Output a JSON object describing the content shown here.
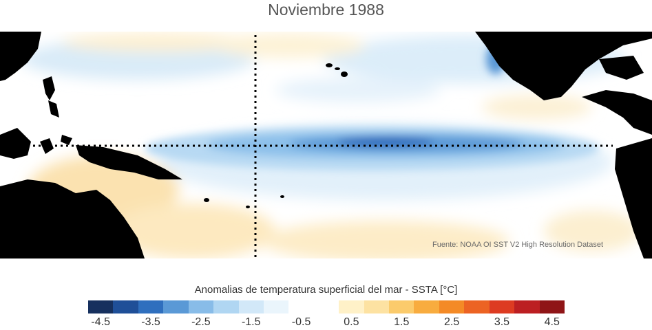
{
  "title": "Noviembre 1988",
  "source_note": "Fuente: NOAA OI SST V2 High Resolution Dataset",
  "colorbar": {
    "title": "Anomalias de temperatura superficial del mar - SSTA  [°C]",
    "ticks": [
      "-4.5",
      "-3.5",
      "-2.5",
      "-1.5",
      "-0.5",
      "0.5",
      "1.5",
      "2.5",
      "3.5",
      "4.5"
    ],
    "colors": [
      "#16305e",
      "#1f4f98",
      "#2f6fbe",
      "#5a99d6",
      "#88bce8",
      "#b0d6f2",
      "#d2e8f8",
      "#eaf5fc",
      "#ffffff",
      "#ffffff",
      "#fff1c8",
      "#fde2a2",
      "#fbcb6c",
      "#f8ac3f",
      "#f48a26",
      "#ec6323",
      "#dd3b22",
      "#bc1f22",
      "#8f1517"
    ]
  },
  "map": {
    "land_color": "#000000",
    "reference_lines": [
      "equator",
      "dateline"
    ]
  }
}
